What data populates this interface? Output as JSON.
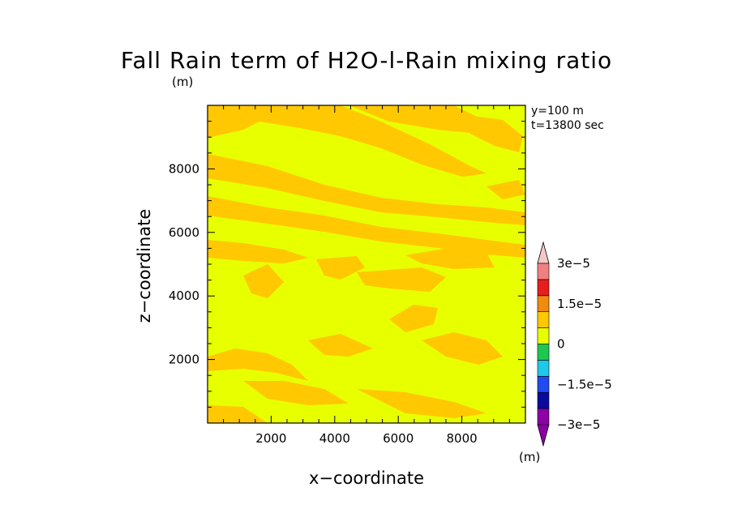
{
  "chart_data": {
    "type": "heatmap",
    "title": "Fall Rain term of H2O-l-Rain mixing ratio",
    "title_unit": "(m)",
    "info_lines": [
      "y=100  m",
      "t=13800 sec"
    ],
    "xlabel": "x−coordinate",
    "ylabel": "z−coordinate",
    "xlim": [
      0,
      10000
    ],
    "ylim": [
      0,
      10000
    ],
    "xticks": [
      "2000",
      "4000",
      "6000",
      "8000"
    ],
    "yticks": [
      "2000",
      "4000",
      "6000",
      "8000"
    ],
    "colorbar": {
      "unit": "(m)",
      "tick_labels": [
        "3e−5",
        "1.5e−5",
        "0",
        "−1.5e−5",
        "−3e−5"
      ],
      "levels_colors": [
        "#8c00a6",
        "#0a0a9c",
        "#1f4bf0",
        "#1fc8e6",
        "#1ec84f",
        "#e8ff00",
        "#ffc800",
        "#f08a10",
        "#e61e1e",
        "#f08080",
        "#f5c8c8"
      ]
    },
    "field_colors": {
      "background": "#e8ff00",
      "positive": "#ffc800"
    }
  }
}
